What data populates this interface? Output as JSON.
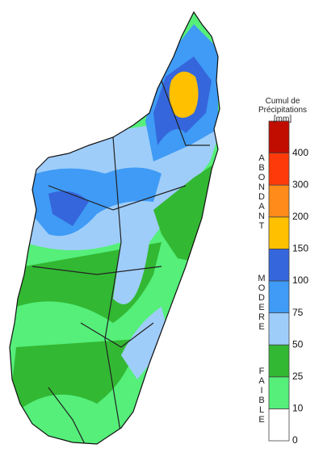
{
  "legend": {
    "title": [
      "Cumul de",
      "Précipitations",
      "[mm]"
    ],
    "ticks": [
      0,
      10,
      25,
      50,
      75,
      100,
      150,
      200,
      300,
      400
    ],
    "colors": [
      "#ffffff",
      "#55ef7a",
      "#33b833",
      "#9fcdfa",
      "#3f9bf5",
      "#3566dc",
      "#ffc000",
      "#ff8c1a",
      "#ff3a0a",
      "#c00d00"
    ],
    "groups": [
      "ABONDANT",
      "MODERE",
      "FAIBLE"
    ]
  }
}
